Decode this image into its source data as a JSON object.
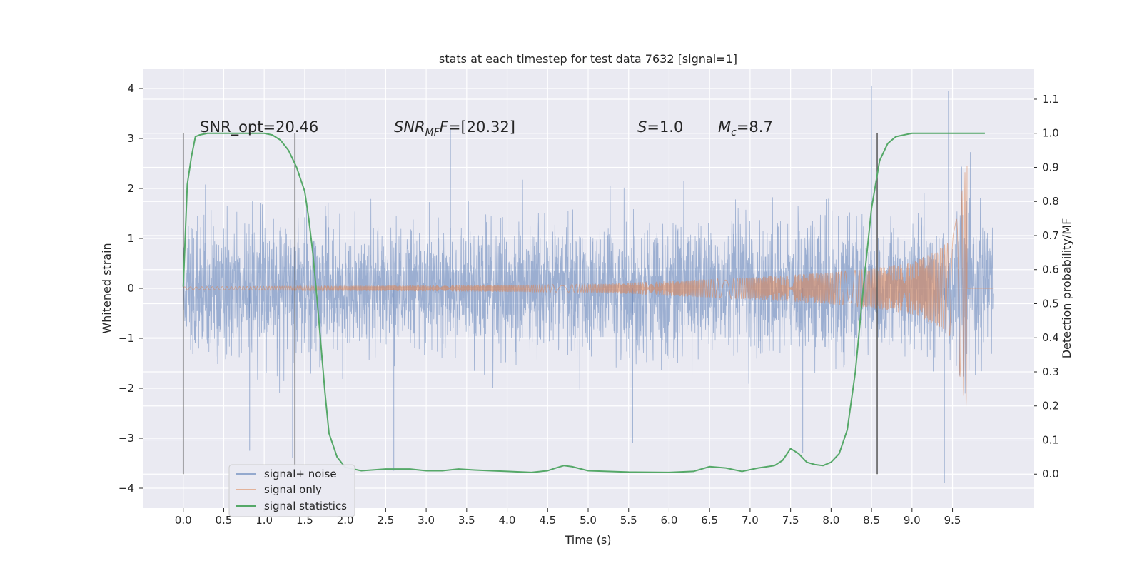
{
  "chart_data": {
    "type": "line",
    "title": "stats at each timestep for test data 7632 [signal=1]",
    "xlabel": "Time (s)",
    "ylabel": "Whitened strain",
    "y2label": "Detection probability/MF",
    "xlim": [
      -0.5,
      10.5
    ],
    "ylim": [
      -4.4,
      4.4
    ],
    "y2lim": [
      -0.1,
      1.19
    ],
    "x_ticks": [
      0.0,
      0.5,
      1.0,
      1.5,
      2.0,
      2.5,
      3.0,
      3.5,
      4.0,
      4.5,
      5.0,
      5.5,
      6.0,
      6.5,
      7.0,
      7.5,
      8.0,
      8.5,
      9.0,
      9.5
    ],
    "x_tick_labels": [
      "0.0",
      "0.5",
      "1.0",
      "1.5",
      "2.0",
      "2.5",
      "3.0",
      "3.5",
      "4.0",
      "4.5",
      "5.0",
      "5.5",
      "6.0",
      "6.5",
      "7.0",
      "7.5",
      "8.0",
      "8.5",
      "9.0",
      "9.5"
    ],
    "y_ticks": [
      4,
      3,
      2,
      1,
      0,
      -1,
      -2,
      -3,
      -4
    ],
    "y_tick_labels": [
      "4",
      "3",
      "2",
      "1",
      "0",
      "−1",
      "−2",
      "−3",
      "−4"
    ],
    "y2_ticks": [
      1.1,
      1.0,
      0.9,
      0.8,
      0.7,
      0.6,
      0.5,
      0.4,
      0.3,
      0.2,
      0.1,
      0.0
    ],
    "y2_tick_labels": [
      "1.1",
      "1.0",
      "0.9",
      "0.8",
      "0.7",
      "0.6",
      "0.5",
      "0.4",
      "0.3",
      "0.2",
      "0.1",
      "0.0"
    ],
    "grid": true,
    "legend_position": "bottom-left",
    "colors": {
      "plot_background": "#eaeaf2",
      "grid": "#ffffff",
      "signal_noise": "#4c72b0",
      "signal_only": "#dd8452",
      "statistics": "#55a868",
      "window_lines": "#555555"
    },
    "annotations": {
      "snr_opt": "SNR_opt=20.46",
      "snr_mf_name": "SNR",
      "snr_mf_sub": "MF",
      "snr_mf_value": "=[20.32]",
      "s_name": "S",
      "s_value": "=1.0",
      "mc_name": "M",
      "mc_sub": "c",
      "mc_value": "=8.7"
    },
    "window_lines_x": [
      0.0,
      1.38,
      8.57
    ],
    "series": [
      {
        "name": "signal+ noise",
        "axis": "left",
        "t_range": [
          0.0,
          10.0
        ],
        "envelope": {
          "typical_amplitude": 1.3,
          "extreme_peaks": [
            [
              8.5,
              4.05
            ],
            [
              9.45,
              3.95
            ],
            [
              9.4,
              -3.9
            ],
            [
              2.6,
              -3.65
            ],
            [
              3.3,
              3.2
            ],
            [
              5.55,
              -3.1
            ],
            [
              7.65,
              -3.3
            ],
            [
              1.35,
              -3.4
            ],
            [
              0.82,
              -3.25
            ]
          ]
        }
      },
      {
        "name": "signal only",
        "axis": "left",
        "description_points": {
          "t": [
            0.0,
            5.0,
            6.0,
            7.0,
            8.0,
            8.5,
            9.0,
            9.3,
            9.5,
            9.62,
            9.68
          ],
          "amplitude": [
            0.03,
            0.08,
            0.15,
            0.22,
            0.32,
            0.4,
            0.52,
            0.75,
            1.0,
            2.0,
            2.6
          ]
        },
        "merger_time": 9.68
      },
      {
        "name": "signal statistics",
        "axis": "right",
        "t": [
          0.0,
          0.05,
          0.1,
          0.15,
          0.2,
          0.3,
          0.5,
          0.8,
          1.0,
          1.1,
          1.2,
          1.3,
          1.4,
          1.5,
          1.55,
          1.6,
          1.65,
          1.7,
          1.75,
          1.8,
          1.9,
          2.0,
          2.2,
          2.5,
          2.8,
          3.0,
          3.2,
          3.4,
          3.6,
          3.8,
          4.0,
          4.3,
          4.5,
          4.6,
          4.7,
          4.8,
          5.0,
          5.5,
          6.0,
          6.3,
          6.5,
          6.7,
          6.9,
          7.1,
          7.3,
          7.4,
          7.5,
          7.6,
          7.7,
          7.8,
          7.9,
          8.0,
          8.1,
          8.2,
          8.3,
          8.4,
          8.5,
          8.6,
          8.7,
          8.8,
          9.0,
          9.5,
          9.9
        ],
        "values": [
          0.55,
          0.85,
          0.93,
          0.99,
          0.995,
          1.0,
          1.0,
          1.0,
          1.0,
          0.995,
          0.98,
          0.95,
          0.9,
          0.83,
          0.75,
          0.65,
          0.52,
          0.38,
          0.24,
          0.12,
          0.05,
          0.02,
          0.01,
          0.015,
          0.015,
          0.01,
          0.01,
          0.015,
          0.012,
          0.01,
          0.008,
          0.005,
          0.01,
          0.018,
          0.025,
          0.022,
          0.01,
          0.006,
          0.005,
          0.008,
          0.022,
          0.018,
          0.008,
          0.018,
          0.025,
          0.04,
          0.075,
          0.06,
          0.035,
          0.028,
          0.025,
          0.035,
          0.06,
          0.13,
          0.3,
          0.55,
          0.78,
          0.92,
          0.97,
          0.99,
          1.0,
          1.0,
          1.0
        ]
      }
    ]
  }
}
